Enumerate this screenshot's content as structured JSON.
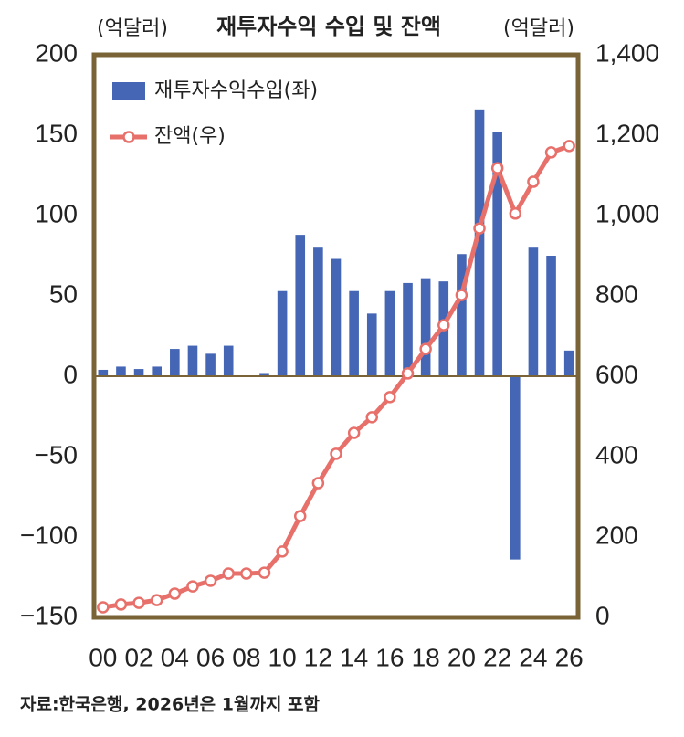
{
  "chart_data": {
    "type": "bar",
    "title": "재투자수익 수입 및 잔액",
    "y_label": "(억달러)",
    "y2_label": "(억달러)",
    "note": "자료:한국은행, 2026년은 1월까지 포함",
    "categories": [
      "00",
      null,
      "02",
      null,
      "04",
      null,
      "06",
      null,
      "08",
      null,
      "10",
      null,
      "12",
      null,
      "14",
      null,
      "16",
      null,
      "18",
      null,
      "20",
      null,
      "22",
      null,
      "24",
      null,
      "26"
    ],
    "series": [
      {
        "name": "재투자수익수입(좌)",
        "type": "bar",
        "color": "#4466b5",
        "values": [
          4,
          6,
          4.5,
          6,
          17,
          19,
          14,
          19,
          0.5,
          2,
          53,
          88,
          80,
          73,
          53,
          39,
          53,
          58,
          61,
          59,
          76,
          166,
          152,
          -114,
          80,
          75,
          16
        ]
      },
      {
        "name": "잔액(우)",
        "type": "line",
        "axis": "y2",
        "color": "#e8706b",
        "values": [
          25,
          32,
          36,
          43,
          59,
          77,
          91,
          109,
          109,
          111,
          164,
          252,
          334,
          407,
          459,
          498,
          548,
          607,
          668,
          727,
          802,
          968,
          1118,
          1005,
          1084,
          1157,
          1173
        ]
      }
    ],
    "ylim": [
      -150,
      200
    ],
    "yticks": [
      {
        "value": -150,
        "label": "−150"
      },
      {
        "value": -100,
        "label": "−100"
      },
      {
        "value": -50,
        "label": "−50"
      },
      0,
      50,
      100,
      150,
      200
    ],
    "y2lim": [
      0,
      1400
    ],
    "y2ticks": [
      0,
      200,
      400,
      600,
      800,
      {
        "value": 1000,
        "label": "1,000"
      },
      {
        "value": 1200,
        "label": "1,200"
      },
      {
        "value": 1400,
        "label": "1,400"
      }
    ],
    "legend": "upper left",
    "frame_color": "#7a6337"
  }
}
